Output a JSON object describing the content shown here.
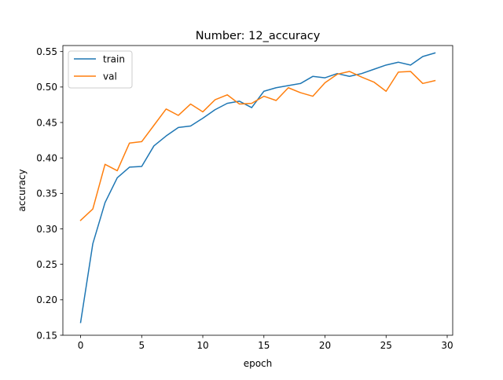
{
  "chart_data": {
    "type": "line",
    "title": "Number: 12_accuracy",
    "xlabel": "epoch",
    "ylabel": "accuracy",
    "xlim": [
      -1.45,
      30.45
    ],
    "ylim": [
      0.15,
      0.5585
    ],
    "xticks": [
      0,
      5,
      10,
      15,
      20,
      25,
      30
    ],
    "xtick_labels": [
      "0",
      "5",
      "10",
      "15",
      "20",
      "25",
      "30"
    ],
    "yticks": [
      0.15,
      0.2,
      0.25,
      0.3,
      0.35,
      0.4,
      0.45,
      0.5,
      0.55
    ],
    "ytick_labels": [
      "0.15",
      "0.20",
      "0.25",
      "0.30",
      "0.35",
      "0.40",
      "0.45",
      "0.50",
      "0.55"
    ],
    "grid": false,
    "legend_position": "top-left",
    "x": [
      0,
      1,
      2,
      3,
      4,
      5,
      6,
      7,
      8,
      9,
      10,
      11,
      12,
      13,
      14,
      15,
      16,
      17,
      18,
      19,
      20,
      21,
      22,
      23,
      24,
      25,
      26,
      27,
      28,
      29
    ],
    "series": [
      {
        "name": "train",
        "color": "#1f77b4",
        "values": [
          0.168,
          0.279,
          0.337,
          0.372,
          0.387,
          0.388,
          0.417,
          0.431,
          0.443,
          0.445,
          0.456,
          0.468,
          0.477,
          0.48,
          0.471,
          0.494,
          0.499,
          0.502,
          0.505,
          0.515,
          0.513,
          0.519,
          0.515,
          0.519,
          0.525,
          0.531,
          0.535,
          0.531,
          0.543,
          0.548
        ]
      },
      {
        "name": "val",
        "color": "#ff7f0e",
        "values": [
          0.312,
          0.328,
          0.391,
          0.382,
          0.421,
          0.423,
          0.446,
          0.469,
          0.46,
          0.476,
          0.465,
          0.482,
          0.489,
          0.476,
          0.477,
          0.487,
          0.481,
          0.499,
          0.492,
          0.487,
          0.506,
          0.518,
          0.522,
          0.514,
          0.507,
          0.494,
          0.521,
          0.522,
          0.505,
          0.509
        ]
      }
    ]
  }
}
